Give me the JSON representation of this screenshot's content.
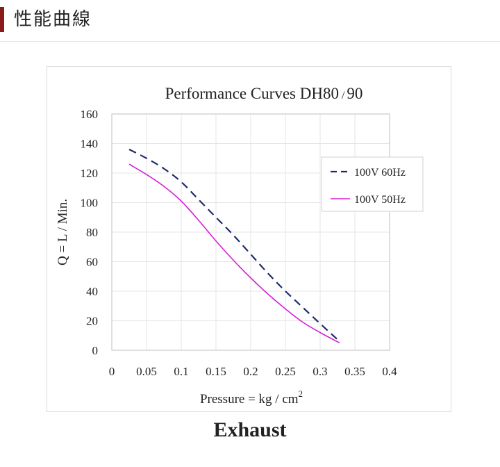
{
  "header": {
    "title": "性能曲線"
  },
  "chart_data": {
    "type": "line",
    "title_main": "Performance  Curves  DH80",
    "title_sep": "/",
    "title_end": "90",
    "xlabel": "Pressure = kg / cm",
    "xlabel_sup": "2",
    "ylabel": "Q = L / Min.",
    "xlim": [
      0,
      0.4
    ],
    "ylim": [
      0,
      160
    ],
    "x_ticks": [
      0,
      0.05,
      0.1,
      0.15,
      0.2,
      0.25,
      0.3,
      0.35,
      0.4
    ],
    "x_tick_labels": [
      "0",
      "0.05",
      "0.1",
      "0.15",
      "0.2",
      "0.25",
      "0.3",
      "0.35",
      "0.4"
    ],
    "y_ticks": [
      0,
      20,
      40,
      60,
      80,
      100,
      120,
      140,
      160
    ],
    "y_tick_labels": [
      "0",
      "20",
      "40",
      "60",
      "80",
      "100",
      "120",
      "140",
      "160"
    ],
    "grid": true,
    "legend_position": "top-right",
    "series": [
      {
        "name": "100V 60Hz",
        "color": "#1f2a6b",
        "dash": true,
        "x": [
          0.025,
          0.05,
          0.075,
          0.1,
          0.125,
          0.15,
          0.175,
          0.2,
          0.225,
          0.25,
          0.275,
          0.3,
          0.328
        ],
        "y": [
          136,
          130,
          123,
          114,
          102,
          90,
          78,
          65,
          52,
          40,
          29,
          18,
          6
        ]
      },
      {
        "name": "100V 50Hz",
        "color": "#d81ed8",
        "dash": false,
        "x": [
          0.025,
          0.05,
          0.075,
          0.1,
          0.125,
          0.15,
          0.175,
          0.2,
          0.225,
          0.25,
          0.275,
          0.3,
          0.328
        ],
        "y": [
          126,
          119,
          111,
          101,
          88,
          74,
          61,
          49,
          38,
          28,
          19,
          12,
          5
        ]
      }
    ]
  },
  "caption": "Exhaust"
}
